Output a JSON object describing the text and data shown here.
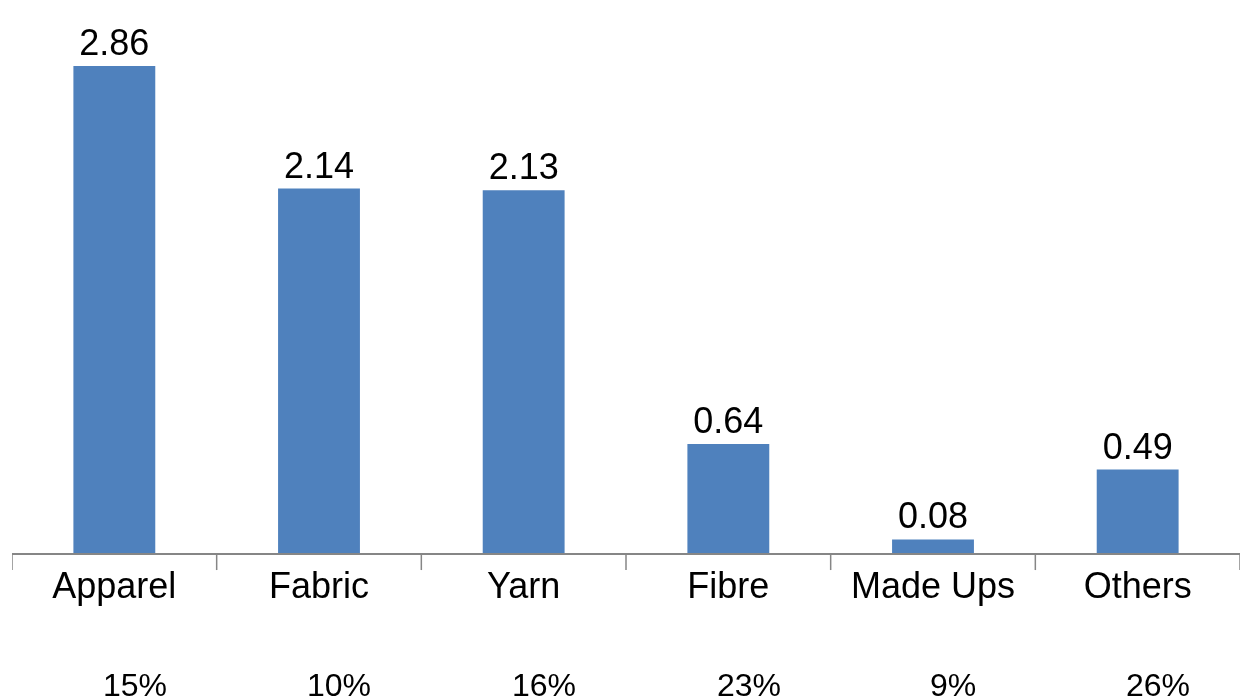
{
  "chart_data": {
    "type": "bar",
    "categories": [
      "Apparel",
      "Fabric",
      "Yarn",
      "Fibre",
      "Made Ups",
      "Others"
    ],
    "values": [
      2.86,
      2.14,
      2.13,
      0.64,
      0.08,
      0.49
    ],
    "color": "#4f81bd",
    "data_labels": true,
    "annotations": [
      "15%",
      "10%",
      "16%",
      "23%",
      "9%",
      "26%"
    ]
  }
}
